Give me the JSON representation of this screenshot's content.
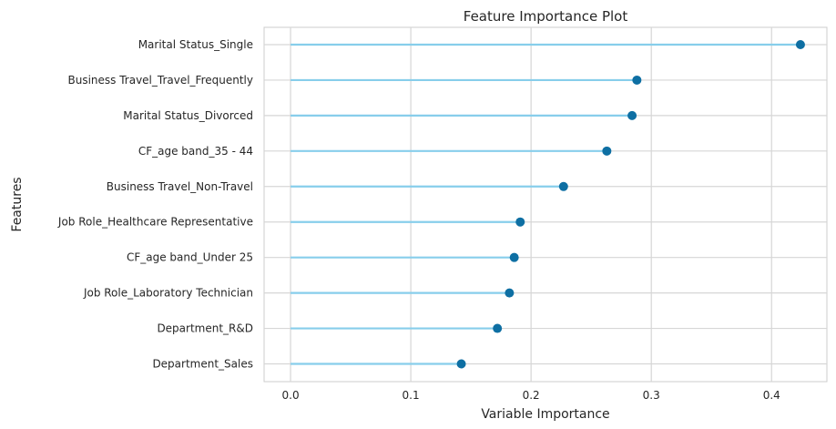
{
  "chart_data": {
    "type": "lollipop",
    "title": "Feature Importance Plot",
    "xlabel": "Variable Importance",
    "ylabel": "Features",
    "xlim": [
      -0.022,
      0.446
    ],
    "xticks": [
      0.0,
      0.1,
      0.2,
      0.3,
      0.4
    ],
    "xtick_labels": [
      "0.0",
      "0.1",
      "0.2",
      "0.3",
      "0.4"
    ],
    "grid": true,
    "categories": [
      "Marital Status_Single",
      "Business Travel_Travel_Frequently",
      "Marital Status_Divorced",
      "CF_age band_35 - 44",
      "Business Travel_Non-Travel",
      "Job Role_Healthcare Representative",
      "CF_age band_Under 25",
      "Job Role_Laboratory Technician",
      "Department_R&D",
      "Department_Sales"
    ],
    "values": [
      0.424,
      0.288,
      0.284,
      0.263,
      0.227,
      0.191,
      0.186,
      0.182,
      0.172,
      0.142
    ],
    "line_color": "#87ceeb",
    "marker_color": "#0e6fa3"
  }
}
